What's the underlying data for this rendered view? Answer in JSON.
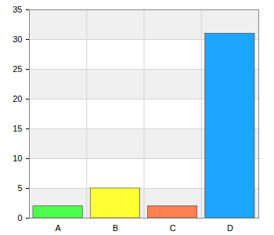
{
  "chart_data": {
    "type": "bar",
    "categories": [
      "A",
      "B",
      "C",
      "D"
    ],
    "values": [
      2,
      5,
      2,
      31
    ],
    "colors": [
      "#4cff4c",
      "#ffff33",
      "#ff7f50",
      "#1ea5ff"
    ],
    "ylim": [
      0,
      35
    ],
    "yticks": [
      0,
      5,
      10,
      15,
      20,
      25,
      30,
      35
    ],
    "grid": true
  }
}
